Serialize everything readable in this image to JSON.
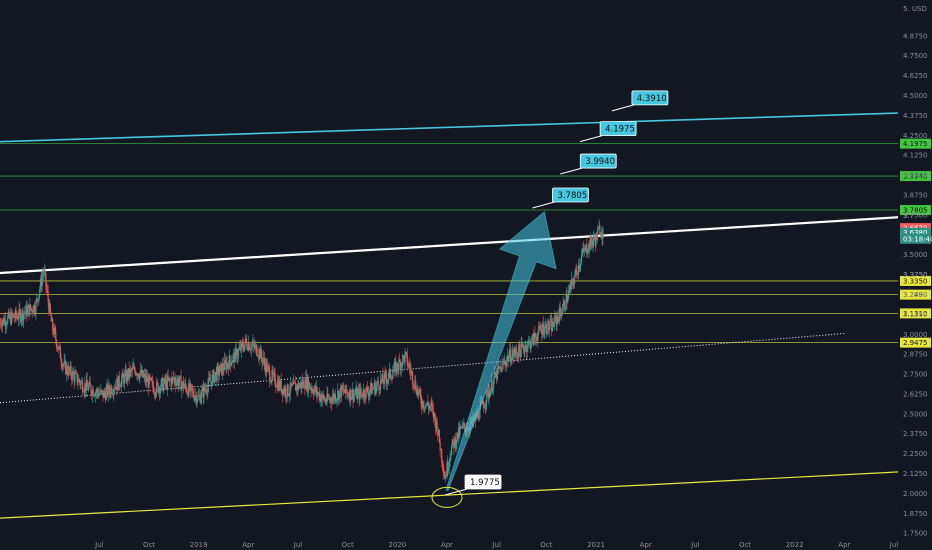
{
  "currency_label": "USD",
  "colors": {
    "background": "#131722",
    "bull": "#26a69a",
    "bear": "#ef5350",
    "cyan": "#45c7e0",
    "green": "#3fc83f",
    "yellow": "#e8e83a",
    "white": "#ffffff",
    "price_red": "#f05a5a",
    "price_teal": "#2e8f86"
  },
  "chart_data": {
    "type": "line",
    "ylim": [
      1.72,
      5.1
    ],
    "y_ticks": [
      "5.0000",
      "4.8750",
      "4.7500",
      "4.6250",
      "4.5000",
      "4.3750",
      "4.2500",
      "4.1250",
      "4.0000",
      "3.8750",
      "3.7500",
      "3.6250",
      "3.5000",
      "3.3750",
      "3.2500",
      "3.1250",
      "3.0000",
      "2.8750",
      "2.7500",
      "2.6250",
      "2.5000",
      "2.3750",
      "2.2500",
      "2.1250",
      "2.0000",
      "1.8750",
      "1.7500"
    ],
    "y_tick_values": [
      5.0,
      4.875,
      4.75,
      4.625,
      4.5,
      4.375,
      4.25,
      4.125,
      4.0,
      3.875,
      3.75,
      3.625,
      3.5,
      3.375,
      3.25,
      3.125,
      3.0,
      2.875,
      2.75,
      2.625,
      2.5,
      2.375,
      2.25,
      2.125,
      2.0,
      1.875,
      1.75
    ],
    "top_tick": "5.",
    "x_ticks": [
      "Jul",
      "Oct",
      "2019",
      "Apr",
      "Jul",
      "Oct",
      "2020",
      "Apr",
      "Jul",
      "Oct",
      "2021",
      "Apr",
      "Jul",
      "Oct",
      "2022",
      "Apr",
      "Jul"
    ],
    "x_tick_values": [
      2018.5,
      2018.75,
      2019.0,
      2019.25,
      2019.5,
      2019.75,
      2020.0,
      2020.25,
      2020.5,
      2020.75,
      2021.0,
      2021.25,
      2021.5,
      2021.75,
      2022.0,
      2022.25,
      2022.5
    ],
    "xlim": [
      2018.0,
      2022.52
    ],
    "price_path": [
      [
        2018.0,
        3.08
      ],
      [
        2018.1,
        3.12
      ],
      [
        2018.18,
        3.18
      ],
      [
        2018.22,
        3.4
      ],
      [
        2018.26,
        3.06
      ],
      [
        2018.32,
        2.8
      ],
      [
        2018.42,
        2.68
      ],
      [
        2018.52,
        2.62
      ],
      [
        2018.6,
        2.7
      ],
      [
        2018.68,
        2.78
      ],
      [
        2018.78,
        2.66
      ],
      [
        2018.88,
        2.72
      ],
      [
        2019.0,
        2.6
      ],
      [
        2019.08,
        2.74
      ],
      [
        2019.18,
        2.86
      ],
      [
        2019.24,
        2.95
      ],
      [
        2019.3,
        2.9
      ],
      [
        2019.36,
        2.74
      ],
      [
        2019.44,
        2.64
      ],
      [
        2019.54,
        2.7
      ],
      [
        2019.64,
        2.58
      ],
      [
        2019.72,
        2.64
      ],
      [
        2019.8,
        2.62
      ],
      [
        2019.88,
        2.66
      ],
      [
        2019.96,
        2.74
      ],
      [
        2020.04,
        2.86
      ],
      [
        2020.08,
        2.72
      ],
      [
        2020.12,
        2.58
      ],
      [
        2020.17,
        2.54
      ],
      [
        2020.2,
        2.42
      ],
      [
        2020.24,
        2.1
      ],
      [
        2020.27,
        2.28
      ],
      [
        2020.32,
        2.4
      ],
      [
        2020.38,
        2.44
      ],
      [
        2020.44,
        2.58
      ],
      [
        2020.5,
        2.75
      ],
      [
        2020.56,
        2.86
      ],
      [
        2020.62,
        2.9
      ],
      [
        2020.68,
        2.96
      ],
      [
        2020.73,
        3.04
      ],
      [
        2020.78,
        3.05
      ],
      [
        2020.84,
        3.18
      ],
      [
        2020.89,
        3.35
      ],
      [
        2020.93,
        3.5
      ],
      [
        2020.97,
        3.57
      ],
      [
        2021.0,
        3.6
      ],
      [
        2021.02,
        3.67
      ],
      [
        2021.035,
        3.64
      ]
    ],
    "candle_seed": 7,
    "levels": [
      {
        "value": 4.1975,
        "color": "green",
        "tag": "4.1975"
      },
      {
        "value": 3.994,
        "color": "green",
        "tag": "3.9940"
      },
      {
        "value": 3.7805,
        "color": "green",
        "tag": "3.7805"
      },
      {
        "value": 3.335,
        "color": "yellow",
        "tag": "3.3350"
      },
      {
        "value": 3.249,
        "color": "yellow",
        "tag": "3.2490"
      },
      {
        "value": 3.131,
        "color": "yellow",
        "tag": "3.1310"
      },
      {
        "value": 2.9475,
        "color": "yellow",
        "tag": "2.9475"
      }
    ],
    "trendlines": [
      {
        "name": "cyan-channel-top",
        "color": "cyan",
        "width": 1.6,
        "dash": "",
        "from": [
          2018.0,
          4.21
        ],
        "to": [
          2022.52,
          4.39
        ]
      },
      {
        "name": "white-resistance",
        "color": "white",
        "width": 2.2,
        "dash": "",
        "from": [
          2018.0,
          3.385
        ],
        "to": [
          2022.52,
          3.735
        ]
      },
      {
        "name": "dotted-midline",
        "color": "white",
        "width": 1.0,
        "dash": "1,2",
        "from": [
          2018.0,
          2.57
        ],
        "to": [
          2022.25,
          3.005
        ]
      },
      {
        "name": "yellow-support",
        "color": "yellow",
        "width": 1.2,
        "dash": "",
        "from": [
          2018.0,
          1.845
        ],
        "to": [
          2022.52,
          2.135
        ]
      }
    ],
    "callouts": [
      {
        "text": "4.3910",
        "value": 4.391,
        "x": 2021.08,
        "fill": "cyan"
      },
      {
        "text": "4.1975",
        "value": 4.1975,
        "x": 2020.92,
        "fill": "cyan"
      },
      {
        "text": "3.9940",
        "value": 3.994,
        "x": 2020.82,
        "fill": "cyan"
      },
      {
        "text": "3.7805",
        "value": 3.7805,
        "x": 2020.68,
        "fill": "cyan"
      },
      {
        "text": "1.9775",
        "value": 1.9775,
        "x": 2020.24,
        "fill": "white"
      }
    ],
    "arrow": {
      "from": [
        2020.25,
        2.02
      ],
      "to": [
        2020.74,
        3.77
      ]
    },
    "low_ellipse": {
      "x": 2020.25,
      "value": 1.975
    },
    "current_price_tags": [
      {
        "text": "3.6670",
        "value": 3.667,
        "color": "price_red"
      },
      {
        "text": "3.6380",
        "value": 3.638,
        "color": "price_teal"
      },
      {
        "text": "03:18:40",
        "value": 3.6,
        "color": "price_teal"
      }
    ],
    "level_tag_overlays": [
      {
        "text": "3.3750",
        "value": 3.375
      },
      {
        "text": "3.7",
        "value": 3.745
      }
    ]
  }
}
